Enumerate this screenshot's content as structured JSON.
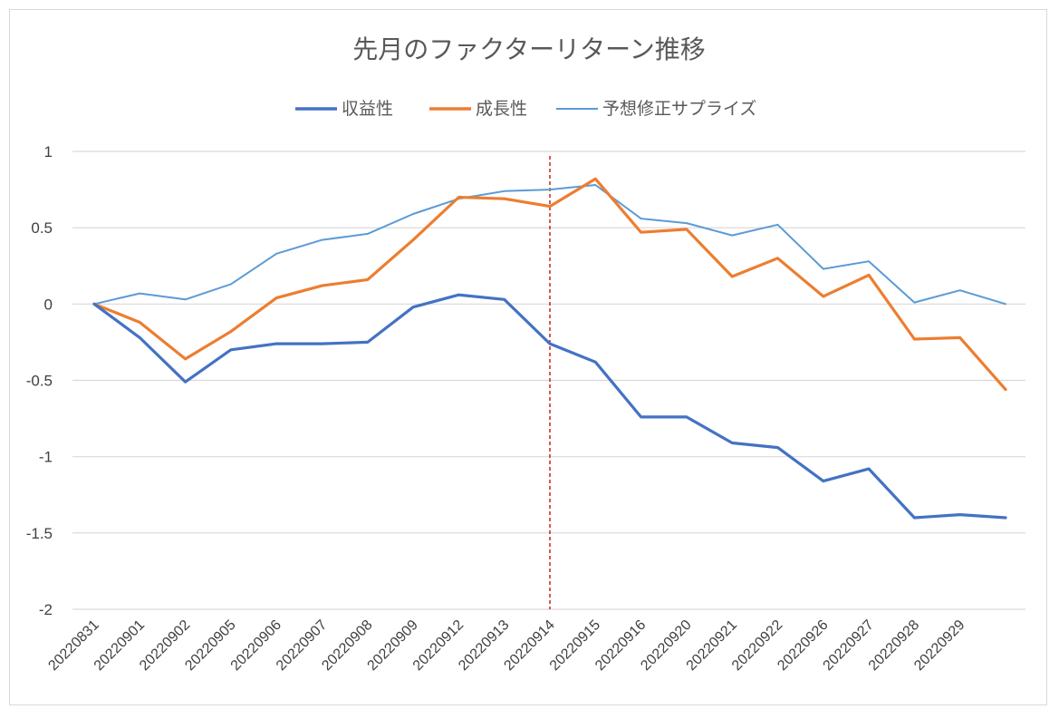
{
  "chart_data": {
    "type": "line",
    "title": "先月のファクターリターン推移",
    "xlabel": "",
    "ylabel": "",
    "ylim": [
      -2,
      1
    ],
    "yticks": [
      1,
      0.5,
      0,
      -0.5,
      -1,
      -1.5,
      -2
    ],
    "ytick_labels": [
      "1",
      "0.5",
      "0",
      "-0.5",
      "-1",
      "-1.5",
      "-2"
    ],
    "grid": true,
    "legend_position": "top",
    "categories": [
      "20220831",
      "20220901",
      "20220902",
      "20220905",
      "20220906",
      "20220907",
      "20220908",
      "20220909",
      "20220912",
      "20220913",
      "20220914",
      "20220915",
      "20220916",
      "20220920",
      "20220921",
      "20220922",
      "20220926",
      "20220927",
      "20220928",
      "20220929",
      ""
    ],
    "x_tick_labels": [
      "20220831",
      "20220901",
      "20220902",
      "20220905",
      "20220906",
      "20220907",
      "20220908",
      "20220909",
      "20220912",
      "20220913",
      "20220914",
      "20220915",
      "20220916",
      "20220920",
      "20220921",
      "20220922",
      "20220926",
      "20220927",
      "20220928",
      "20220929"
    ],
    "series": [
      {
        "name": "収益性",
        "color": "#4472c4",
        "values": [
          0,
          -0.22,
          -0.51,
          -0.3,
          -0.26,
          -0.26,
          -0.25,
          -0.02,
          0.06,
          0.03,
          -0.26,
          -0.38,
          -0.74,
          -0.74,
          -0.91,
          -0.94,
          -1.16,
          -1.08,
          -1.4,
          -1.38,
          -1.4
        ]
      },
      {
        "name": "成長性",
        "color": "#ed7d31",
        "values": [
          0,
          -0.12,
          -0.36,
          -0.18,
          0.04,
          0.12,
          0.16,
          0.42,
          0.7,
          0.69,
          0.64,
          0.82,
          0.47,
          0.49,
          0.18,
          0.3,
          0.05,
          0.19,
          -0.23,
          -0.22,
          -0.56
        ]
      },
      {
        "name": "予想修正サプライズ",
        "color": "#5b9bd5",
        "values": [
          0,
          0.07,
          0.03,
          0.13,
          0.33,
          0.42,
          0.46,
          0.59,
          0.69,
          0.74,
          0.75,
          0.78,
          0.56,
          0.53,
          0.45,
          0.52,
          0.23,
          0.28,
          0.01,
          0.09,
          0.0
        ]
      }
    ],
    "annotations": [
      {
        "type": "vertical-dashed-line",
        "at_category": "20220914",
        "color": "#c00000"
      }
    ]
  }
}
